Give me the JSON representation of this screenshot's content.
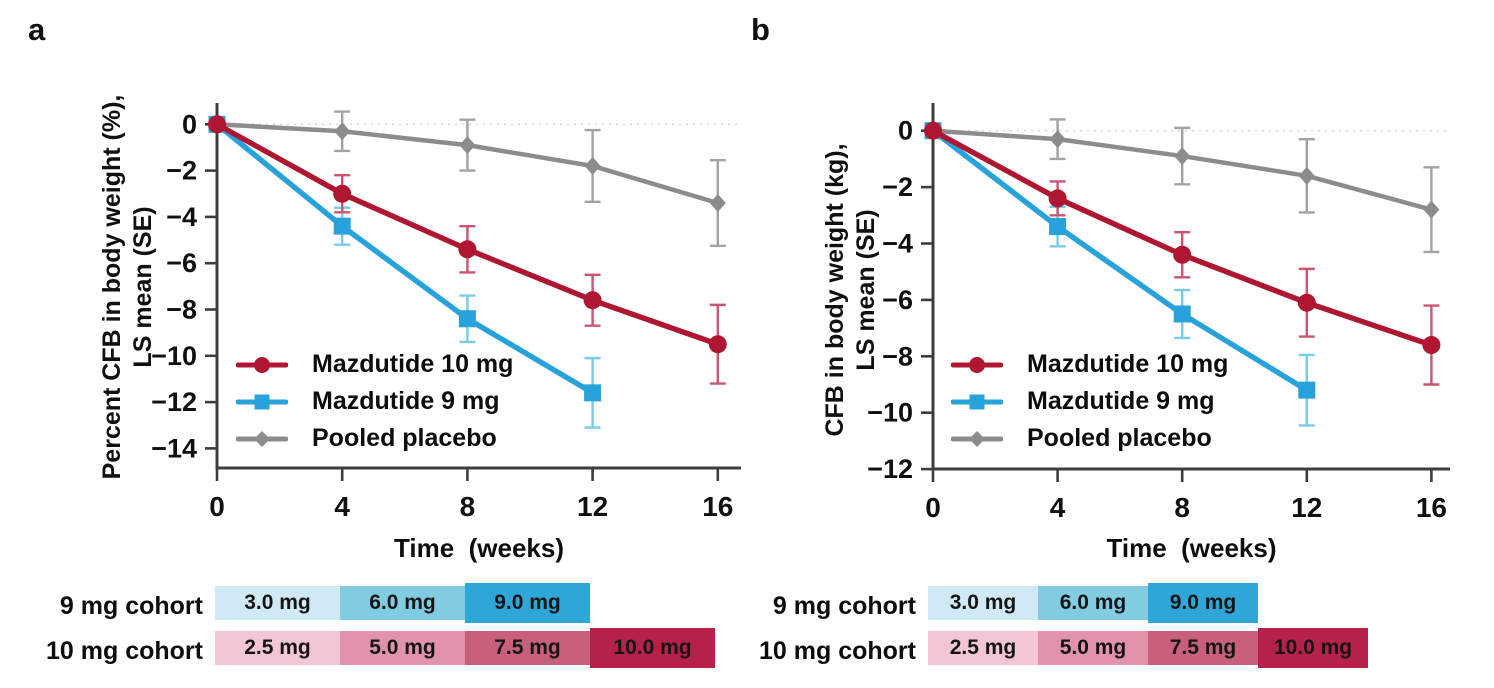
{
  "figure": {
    "panel_a_label": "a",
    "panel_b_label": "b"
  },
  "chart_data": [
    {
      "id": "a",
      "type": "line",
      "title": "",
      "xlabel": "Time  (weeks)",
      "ylabel_line1": "Percent CFB in body weight (%),",
      "ylabel_line2": "LS mean (SE)",
      "x_ticks": [
        0,
        4,
        8,
        12,
        16
      ],
      "y_ticks": [
        0,
        -2,
        -4,
        -6,
        -8,
        -10,
        -12,
        -14
      ],
      "xlim": [
        0,
        16.75
      ],
      "ylim": [
        -14.85,
        0.92
      ],
      "grid": false,
      "zero_reference_line": true,
      "legend_position": "inside-lower-left",
      "series": [
        {
          "name": "Mazdutide 10 mg",
          "marker": "circle",
          "color": "#ae1631",
          "error_color": "#cb5570",
          "x": [
            0,
            4,
            8,
            12,
            16
          ],
          "values": [
            0,
            -3.0,
            -5.4,
            -7.6,
            -9.5
          ],
          "se": [
            0,
            0.8,
            1.0,
            1.1,
            1.7
          ]
        },
        {
          "name": "Mazdutide 9 mg",
          "marker": "square",
          "color": "#27a2da",
          "error_color": "#76ccec",
          "x": [
            0,
            4,
            8,
            12
          ],
          "values": [
            0,
            -4.4,
            -8.4,
            -11.6
          ],
          "se": [
            0,
            0.8,
            1.0,
            1.5
          ]
        },
        {
          "name": "Pooled placebo",
          "marker": "diamond",
          "color": "#8c8c8c",
          "error_color": "#a2a2a2",
          "x": [
            0,
            4,
            8,
            12,
            16
          ],
          "values": [
            0,
            -0.3,
            -0.9,
            -1.8,
            -3.4
          ],
          "se": [
            0,
            0.85,
            1.1,
            1.55,
            1.85
          ]
        }
      ]
    },
    {
      "id": "b",
      "type": "line",
      "title": "",
      "xlabel": "Time  (weeks)",
      "ylabel_line1": "CFB in body weight (kg),",
      "ylabel_line2": "LS mean (SE)",
      "x_ticks": [
        0,
        4,
        8,
        12,
        16
      ],
      "y_ticks": [
        0,
        -2,
        -4,
        -6,
        -8,
        -10,
        -12
      ],
      "xlim": [
        0,
        16.6
      ],
      "ylim": [
        -12.0,
        0.98
      ],
      "grid": false,
      "zero_reference_line": true,
      "legend_position": "inside-lower-left",
      "series": [
        {
          "name": "Mazdutide 10 mg",
          "marker": "circle",
          "color": "#ae1631",
          "error_color": "#cb5570",
          "x": [
            0,
            4,
            8,
            12,
            16
          ],
          "values": [
            0,
            -2.4,
            -4.4,
            -6.1,
            -7.6
          ],
          "se": [
            0,
            0.6,
            0.8,
            1.2,
            1.4
          ]
        },
        {
          "name": "Mazdutide 9 mg",
          "marker": "square",
          "color": "#27a2da",
          "error_color": "#76ccec",
          "x": [
            0,
            4,
            8,
            12
          ],
          "values": [
            0,
            -3.4,
            -6.5,
            -9.2
          ],
          "se": [
            0,
            0.7,
            0.85,
            1.25
          ]
        },
        {
          "name": "Pooled placebo",
          "marker": "diamond",
          "color": "#8c8c8c",
          "error_color": "#a2a2a2",
          "x": [
            0,
            4,
            8,
            12,
            16
          ],
          "values": [
            0,
            -0.3,
            -0.9,
            -1.6,
            -2.8
          ],
          "se": [
            0,
            0.7,
            1.0,
            1.3,
            1.5
          ]
        }
      ]
    }
  ],
  "dose_schedule": {
    "rows": [
      {
        "label": "9 mg cohort",
        "segments": [
          {
            "text": "3.0 mg",
            "color": "#cfeaf4"
          },
          {
            "text": "6.0 mg",
            "color": "#82cce2"
          },
          {
            "text": "9.0 mg",
            "color": "#2ea6d8"
          }
        ]
      },
      {
        "label": "10 mg cohort",
        "segments": [
          {
            "text": "2.5 mg",
            "color": "#f3c6d4"
          },
          {
            "text": "5.0 mg",
            "color": "#e093a9"
          },
          {
            "text": "7.5 mg",
            "color": "#c9607b"
          },
          {
            "text": "10.0 mg",
            "color": "#b52148"
          }
        ]
      }
    ]
  }
}
